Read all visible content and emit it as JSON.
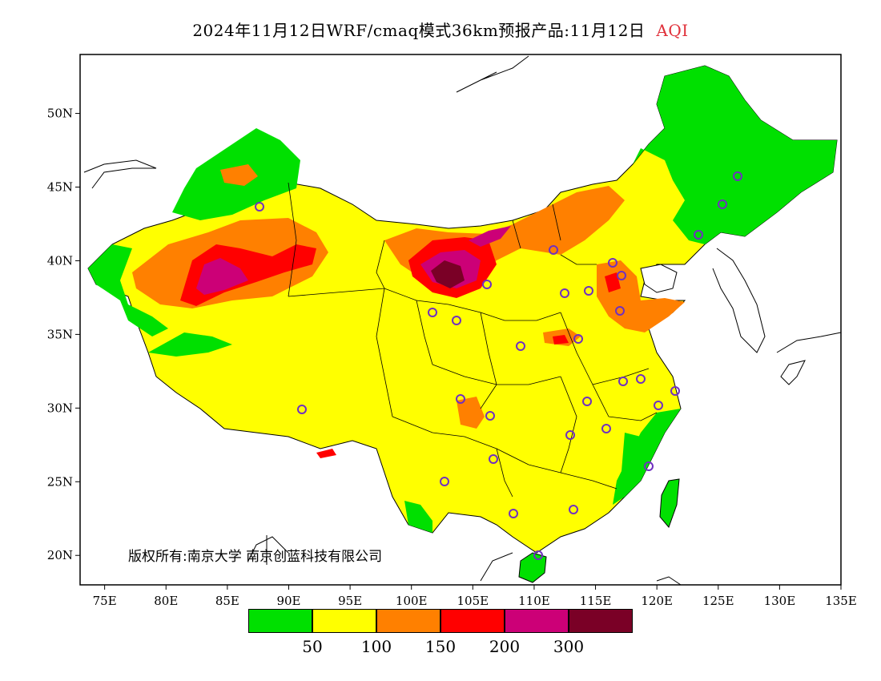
{
  "title": {
    "main": "2024年11月12日WRF/cmaq模式36km预报产品:11月12日",
    "variable": "AQI"
  },
  "map": {
    "lon_ticks": [
      "75E",
      "80E",
      "85E",
      "90E",
      "95E",
      "100E",
      "105E",
      "110E",
      "115E",
      "120E",
      "125E",
      "130E",
      "135E"
    ],
    "lat_ticks": [
      "50N",
      "45N",
      "40N",
      "35N",
      "30N",
      "25N",
      "20N"
    ],
    "lon_range": [
      73,
      135
    ],
    "lat_range": [
      18,
      54
    ],
    "land_color": "#ffff00",
    "ocean_color": "#ffffff",
    "copyright": "版权所有:南京大学 南京创蓝科技有限公司"
  },
  "colorbar": {
    "colors": [
      "#00e000",
      "#ffff00",
      "#ff8000",
      "#ff0000",
      "#cc0077",
      "#7a0026"
    ],
    "labels": [
      "50",
      "100",
      "150",
      "200",
      "300"
    ]
  }
}
